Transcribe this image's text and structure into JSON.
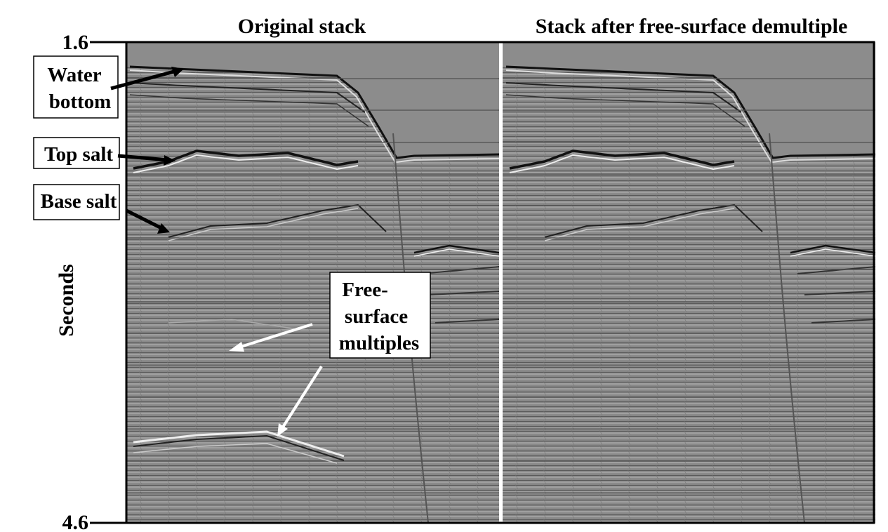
{
  "panels": [
    {
      "title": "Original stack"
    },
    {
      "title": "Stack after free-surface demultiple"
    }
  ],
  "axis": {
    "label": "Seconds",
    "ticks": [
      1.6,
      4.6
    ]
  },
  "annotations": [
    {
      "lines": [
        "Water",
        "bottom"
      ]
    },
    {
      "lines": [
        "Top salt"
      ]
    },
    {
      "lines": [
        "Base salt"
      ]
    },
    {
      "lines": [
        "Free-",
        "surface",
        "multiples"
      ]
    }
  ]
}
